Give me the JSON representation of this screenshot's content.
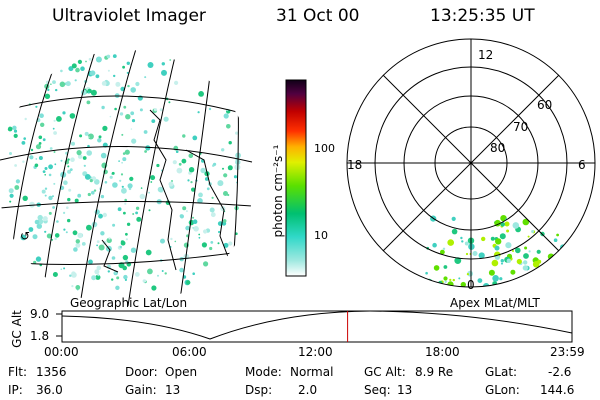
{
  "header": {
    "title": "Ultraviolet Imager",
    "date": "31 Oct 00",
    "time": "13:25:35 UT"
  },
  "colorbar": {
    "unit_label": "photon cm⁻²s⁻¹",
    "ticks": [
      "100",
      "10"
    ]
  },
  "polar_plot": {
    "mlt_labels": [
      "12",
      "18",
      "6",
      "0"
    ],
    "lat_labels": [
      "60",
      "70",
      "80"
    ]
  },
  "panel_labels": {
    "left": "Geographic Lat/Lon",
    "right": "Apex MLat/MLT"
  },
  "altitude_plot": {
    "axis_label": "GC Alt",
    "y_ticks": [
      "9.0",
      "1.8"
    ],
    "time_ticks": [
      "00:00",
      "06:00",
      "12:00",
      "18:00",
      "23:59"
    ],
    "current_time_fraction": 0.56,
    "marker_color": "#cc0000"
  },
  "status": {
    "flt_label": "Flt:",
    "flt": "1356",
    "ip_label": "IP:",
    "ip": "36.0",
    "door_label": "Door:",
    "door": "Open",
    "gain_label": "Gain:",
    "gain": "13",
    "mode_label": "Mode:",
    "mode": "Normal",
    "dsp_label": "Dsp:",
    "dsp": "2.0",
    "gcalt_label": "GC Alt:",
    "gcalt": "8.9 Re",
    "seq_label": "Seq:",
    "seq": "13",
    "glat_label": "GLat:",
    "glat": "-2.6",
    "glon_label": "GLon:",
    "glon": "144.6"
  }
}
